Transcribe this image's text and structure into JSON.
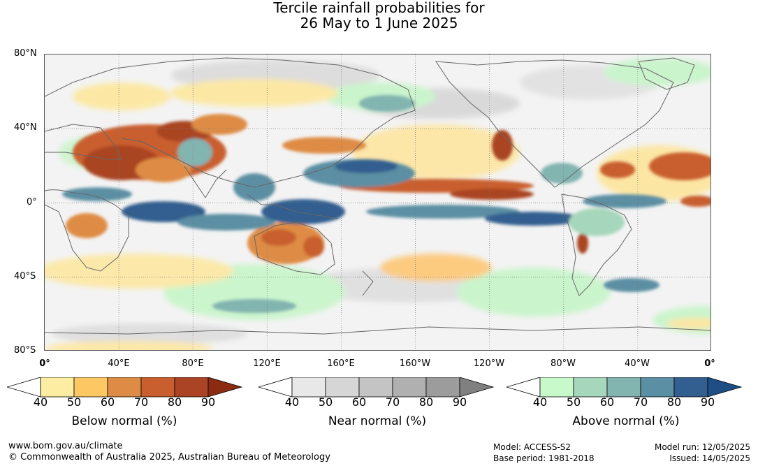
{
  "title": {
    "line1": "Tercile rainfall probabilities for",
    "line2": "26 May to 1 June 2025"
  },
  "map": {
    "lat_labels": [
      "80°N",
      "40°N",
      "0°",
      "40°S",
      "80°S"
    ],
    "lon_labels": [
      "0°",
      "40°E",
      "80°E",
      "120°E",
      "160°E",
      "160°W",
      "120°W",
      "80°W",
      "40°W",
      "0°"
    ],
    "colors": {
      "land_outline": "#666666",
      "grid": "#777777"
    }
  },
  "legends": [
    {
      "caption": "Below normal (%)",
      "ticks": [
        "40",
        "50",
        "60",
        "70",
        "80",
        "90"
      ],
      "colors": [
        "#ffffff",
        "#fdeda2",
        "#fdc763",
        "#de8c45",
        "#c95f2f",
        "#aa4424",
        "#8b2b12"
      ]
    },
    {
      "caption": "Near normal (%)",
      "ticks": [
        "40",
        "50",
        "60",
        "70",
        "80",
        "90"
      ],
      "colors": [
        "#ffffff",
        "#e8e8e8",
        "#d6d6d6",
        "#c4c4c4",
        "#b0b0b0",
        "#9c9c9c",
        "#808080"
      ]
    },
    {
      "caption": "Above normal (%)",
      "ticks": [
        "40",
        "50",
        "60",
        "70",
        "80",
        "90"
      ],
      "colors": [
        "#ffffff",
        "#c8f9ca",
        "#a6d7bc",
        "#82b4b0",
        "#5b8fa3",
        "#325f8f",
        "#1f4e84"
      ]
    }
  ],
  "footer": {
    "url": "www.bom.gov.au/climate",
    "copyright": "© Commonwealth of Australia 2025, Australian Bureau of Meteorology",
    "model": "Model: ACCESS-S2",
    "base_period": "Base period: 1981-2018",
    "model_run": "Model run: 12/05/2025",
    "issued": "Issued: 14/05/2025"
  }
}
